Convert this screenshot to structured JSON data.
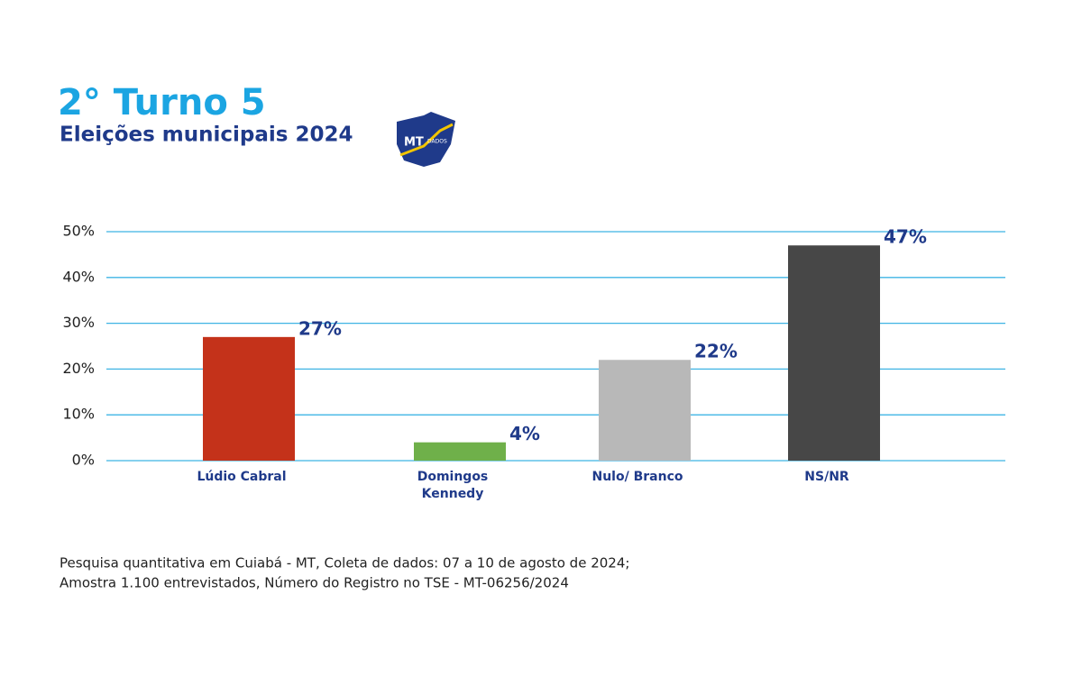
{
  "chart_data": {
    "type": "bar",
    "title": "2° Turno 5",
    "subtitle": "Eleições municipais 2024",
    "categories": [
      "Lúdio Cabral",
      "Domingos Kennedy",
      "Nulo/ Branco",
      "NS/NR"
    ],
    "values": [
      27,
      4,
      22,
      47
    ],
    "value_labels": [
      "27%",
      "4%",
      "22%",
      "47%"
    ],
    "colors": [
      "#c4321a",
      "#6fb04a",
      "#b8b8b8",
      "#474747"
    ],
    "ylim": [
      0,
      50
    ],
    "yticks": [
      {
        "value": 0,
        "label": "0%"
      },
      {
        "value": 10,
        "label": "10%"
      },
      {
        "value": 20,
        "label": "20%"
      },
      {
        "value": 30,
        "label": "30%"
      },
      {
        "value": 40,
        "label": "40%"
      },
      {
        "value": 50,
        "label": "50%"
      }
    ],
    "grid": true,
    "notes": [
      "Pesquisa quantitativa em Cuiabá - MT, Coleta de dados: 07 a 10 de agosto de 2024;",
      "Amostra 1.100 entrevistados, Número do Registro no TSE - MT-06256/2024"
    ]
  },
  "logo": {
    "text": "MT",
    "subtext": "DADOS"
  }
}
